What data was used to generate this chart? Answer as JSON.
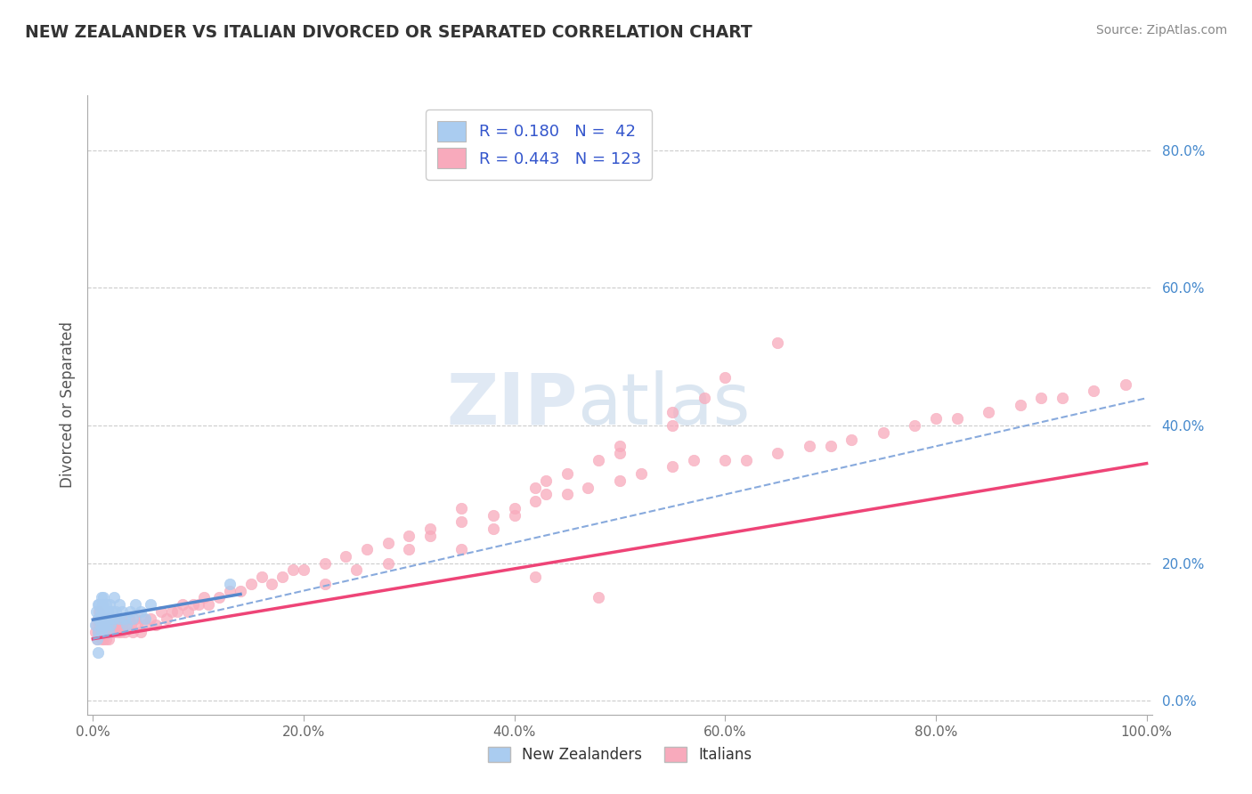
{
  "title": "NEW ZEALANDER VS ITALIAN DIVORCED OR SEPARATED CORRELATION CHART",
  "source": "Source: ZipAtlas.com",
  "ylabel": "Divorced or Separated",
  "watermark": "ZIPatlas",
  "legend_nz": {
    "R": 0.18,
    "N": 42
  },
  "legend_it": {
    "R": 0.443,
    "N": 123
  },
  "xlim": [
    -0.005,
    1.005
  ],
  "ylim": [
    -0.02,
    0.88
  ],
  "xticks": [
    0.0,
    0.2,
    0.4,
    0.6,
    0.8,
    1.0
  ],
  "yticks_left": [],
  "yticks_right": [
    0.0,
    0.2,
    0.4,
    0.6,
    0.8
  ],
  "xticklabels": [
    "0.0%",
    "20.0%",
    "40.0%",
    "60.0%",
    "80.0%",
    "100.0%"
  ],
  "yticklabels_right": [
    "0.0%",
    "20.0%",
    "40.0%",
    "60.0%",
    "80.0%"
  ],
  "background_color": "#ffffff",
  "grid_color": "#cccccc",
  "nz_scatter_color": "#aaccf0",
  "it_scatter_color": "#f8aabc",
  "nz_line_color": "#5588cc",
  "it_line_color": "#ee4477",
  "dashed_line_color": "#88aadd",
  "legend_text_color": "#3355cc",
  "title_color": "#333333",
  "nz_points_x": [
    0.002,
    0.003,
    0.004,
    0.005,
    0.005,
    0.005,
    0.005,
    0.006,
    0.006,
    0.007,
    0.007,
    0.008,
    0.008,
    0.009,
    0.009,
    0.01,
    0.01,
    0.01,
    0.012,
    0.012,
    0.013,
    0.014,
    0.015,
    0.015,
    0.016,
    0.017,
    0.018,
    0.02,
    0.02,
    0.022,
    0.025,
    0.025,
    0.028,
    0.03,
    0.032,
    0.035,
    0.038,
    0.04,
    0.045,
    0.05,
    0.055,
    0.13
  ],
  "nz_points_y": [
    0.11,
    0.13,
    0.09,
    0.12,
    0.14,
    0.1,
    0.07,
    0.12,
    0.14,
    0.11,
    0.13,
    0.1,
    0.15,
    0.12,
    0.14,
    0.11,
    0.13,
    0.15,
    0.12,
    0.14,
    0.11,
    0.13,
    0.1,
    0.12,
    0.14,
    0.11,
    0.13,
    0.12,
    0.15,
    0.13,
    0.12,
    0.14,
    0.13,
    0.12,
    0.11,
    0.13,
    0.12,
    0.14,
    0.13,
    0.12,
    0.14,
    0.17
  ],
  "it_points_x": [
    0.002,
    0.003,
    0.004,
    0.005,
    0.005,
    0.006,
    0.006,
    0.007,
    0.007,
    0.008,
    0.008,
    0.009,
    0.009,
    0.01,
    0.01,
    0.011,
    0.011,
    0.012,
    0.012,
    0.013,
    0.013,
    0.014,
    0.015,
    0.015,
    0.016,
    0.017,
    0.018,
    0.019,
    0.02,
    0.021,
    0.022,
    0.023,
    0.024,
    0.025,
    0.026,
    0.027,
    0.028,
    0.03,
    0.032,
    0.034,
    0.036,
    0.038,
    0.04,
    0.042,
    0.045,
    0.048,
    0.05,
    0.055,
    0.06,
    0.065,
    0.07,
    0.075,
    0.08,
    0.085,
    0.09,
    0.095,
    0.1,
    0.105,
    0.11,
    0.12,
    0.13,
    0.14,
    0.15,
    0.16,
    0.17,
    0.18,
    0.19,
    0.2,
    0.22,
    0.24,
    0.26,
    0.28,
    0.3,
    0.32,
    0.35,
    0.38,
    0.4,
    0.42,
    0.45,
    0.47,
    0.5,
    0.52,
    0.55,
    0.57,
    0.6,
    0.62,
    0.65,
    0.68,
    0.7,
    0.72,
    0.75,
    0.78,
    0.8,
    0.82,
    0.85,
    0.88,
    0.9,
    0.92,
    0.95,
    0.98,
    0.35,
    0.38,
    0.4,
    0.43,
    0.3,
    0.32,
    0.25,
    0.28,
    0.22,
    0.43,
    0.48,
    0.5,
    0.42,
    0.55,
    0.5,
    0.55,
    0.58,
    0.6,
    0.65,
    0.45,
    0.35,
    0.42,
    0.48
  ],
  "it_points_y": [
    0.1,
    0.11,
    0.09,
    0.12,
    0.1,
    0.11,
    0.13,
    0.1,
    0.12,
    0.09,
    0.11,
    0.1,
    0.12,
    0.09,
    0.11,
    0.1,
    0.12,
    0.09,
    0.11,
    0.1,
    0.12,
    0.11,
    0.09,
    0.11,
    0.1,
    0.12,
    0.11,
    0.1,
    0.11,
    0.12,
    0.11,
    0.1,
    0.12,
    0.11,
    0.1,
    0.12,
    0.11,
    0.1,
    0.11,
    0.12,
    0.11,
    0.1,
    0.12,
    0.11,
    0.1,
    0.12,
    0.11,
    0.12,
    0.11,
    0.13,
    0.12,
    0.13,
    0.13,
    0.14,
    0.13,
    0.14,
    0.14,
    0.15,
    0.14,
    0.15,
    0.16,
    0.16,
    0.17,
    0.18,
    0.17,
    0.18,
    0.19,
    0.19,
    0.2,
    0.21,
    0.22,
    0.23,
    0.24,
    0.25,
    0.26,
    0.27,
    0.28,
    0.29,
    0.3,
    0.31,
    0.32,
    0.33,
    0.34,
    0.35,
    0.35,
    0.35,
    0.36,
    0.37,
    0.37,
    0.38,
    0.39,
    0.4,
    0.41,
    0.41,
    0.42,
    0.43,
    0.44,
    0.44,
    0.45,
    0.46,
    0.28,
    0.25,
    0.27,
    0.3,
    0.22,
    0.24,
    0.19,
    0.2,
    0.17,
    0.32,
    0.35,
    0.37,
    0.31,
    0.4,
    0.36,
    0.42,
    0.44,
    0.47,
    0.52,
    0.33,
    0.22,
    0.18,
    0.15
  ],
  "nz_line": {
    "x0": 0.0,
    "y0": 0.118,
    "x1": 0.14,
    "y1": 0.155
  },
  "it_line": {
    "x0": 0.0,
    "y0": 0.09,
    "x1": 1.0,
    "y1": 0.345
  },
  "dashed_line": {
    "x0": 0.0,
    "y0": 0.09,
    "x1": 1.0,
    "y1": 0.44
  }
}
